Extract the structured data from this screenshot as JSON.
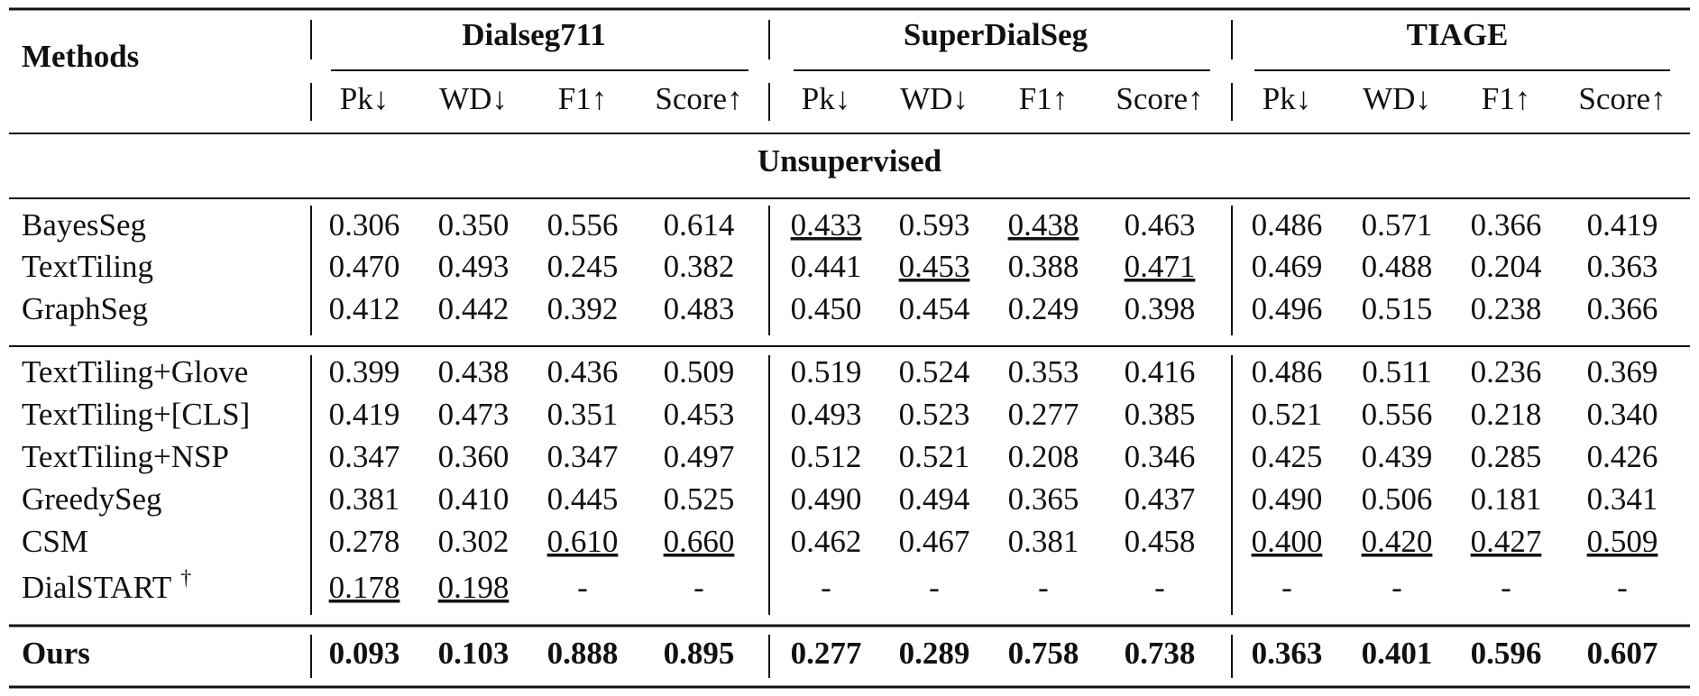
{
  "header": {
    "methods": "Methods",
    "groups": [
      "Dialseg711",
      "SuperDialSeg",
      "TIAGE"
    ],
    "metrics": [
      "Pk↓",
      "WD↓",
      "F1↑",
      "Score↑"
    ]
  },
  "section": "Unsupervised",
  "groups": [
    [
      {
        "method": "BayesSeg",
        "values": [
          "0.306",
          "0.350",
          "0.556",
          "0.614",
          "0.433",
          "0.593",
          "0.438",
          "0.463",
          "0.486",
          "0.571",
          "0.366",
          "0.419"
        ]
      },
      {
        "method": "TextTiling",
        "values": [
          "0.470",
          "0.493",
          "0.245",
          "0.382",
          "0.441",
          "0.453",
          "0.388",
          "0.471",
          "0.469",
          "0.488",
          "0.204",
          "0.363"
        ]
      },
      {
        "method": "GraphSeg",
        "values": [
          "0.412",
          "0.442",
          "0.392",
          "0.483",
          "0.450",
          "0.454",
          "0.249",
          "0.398",
          "0.496",
          "0.515",
          "0.238",
          "0.366"
        ]
      }
    ],
    [
      {
        "method": "TextTiling+Glove",
        "values": [
          "0.399",
          "0.438",
          "0.436",
          "0.509",
          "0.519",
          "0.524",
          "0.353",
          "0.416",
          "0.486",
          "0.511",
          "0.236",
          "0.369"
        ]
      },
      {
        "method": "TextTiling+[CLS]",
        "values": [
          "0.419",
          "0.473",
          "0.351",
          "0.453",
          "0.493",
          "0.523",
          "0.277",
          "0.385",
          "0.521",
          "0.556",
          "0.218",
          "0.340"
        ]
      },
      {
        "method": "TextTiling+NSP",
        "values": [
          "0.347",
          "0.360",
          "0.347",
          "0.497",
          "0.512",
          "0.521",
          "0.208",
          "0.346",
          "0.425",
          "0.439",
          "0.285",
          "0.426"
        ]
      },
      {
        "method": "GreedySeg",
        "values": [
          "0.381",
          "0.410",
          "0.445",
          "0.525",
          "0.490",
          "0.494",
          "0.365",
          "0.437",
          "0.490",
          "0.506",
          "0.181",
          "0.341"
        ]
      },
      {
        "method": "CSM",
        "values": [
          "0.278",
          "0.302",
          "0.610",
          "0.660",
          "0.462",
          "0.467",
          "0.381",
          "0.458",
          "0.400",
          "0.420",
          "0.427",
          "0.509"
        ]
      },
      {
        "method": "DialSTART",
        "mark": "†",
        "values": [
          "0.178",
          "0.198",
          "-",
          "-",
          "-",
          "-",
          "-",
          "-",
          "-",
          "-",
          "-",
          "-"
        ]
      }
    ]
  ],
  "final": {
    "method": "Ours",
    "values": [
      "0.093",
      "0.103",
      "0.888",
      "0.895",
      "0.277",
      "0.289",
      "0.758",
      "0.738",
      "0.363",
      "0.401",
      "0.596",
      "0.607"
    ]
  }
}
